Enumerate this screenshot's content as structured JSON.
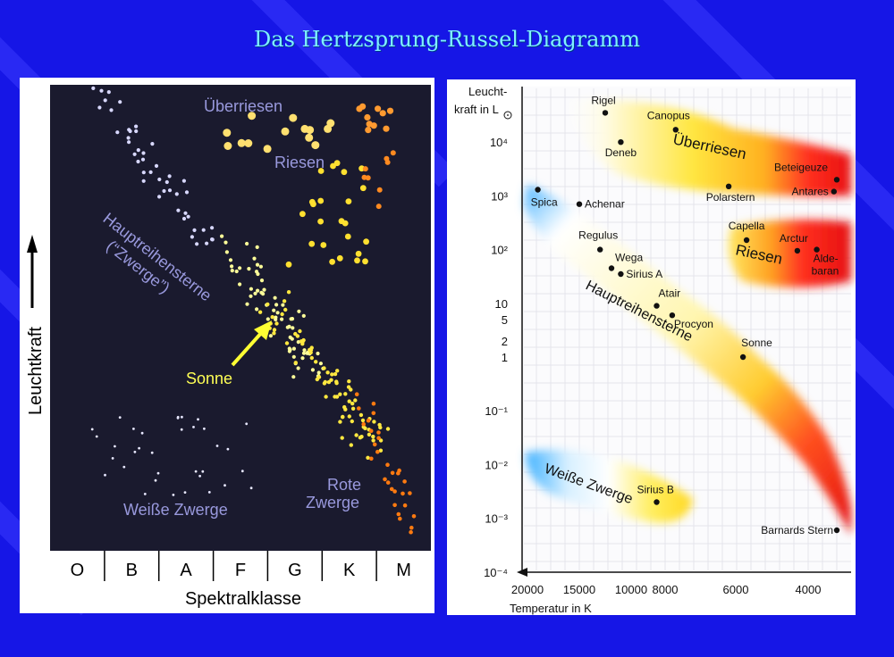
{
  "title": "Das Hertzsprung-Russel-Diagramm",
  "left_diagram": {
    "y_axis_label": "Leuchtkraft",
    "x_axis_label": "Spektralklasse",
    "spectral_classes": [
      "O",
      "B",
      "A",
      "F",
      "G",
      "K",
      "M"
    ],
    "region_labels": {
      "supergiants": "Überriesen",
      "giants": "Riesen",
      "main_sequence_line1": "Hauptreihensterne",
      "main_sequence_line2": "(“Zwerge”)",
      "sun": "Sonne",
      "red_dwarfs_line1": "Rote",
      "red_dwarfs_line2": "Zwerge",
      "white_dwarfs": "Weiße Zwerge"
    }
  },
  "right_diagram": {
    "y_axis_title_line1": "Leucht-",
    "y_axis_title_line2": "kraft in L",
    "x_axis_title": "Temperatur in K",
    "y_ticks": [
      {
        "label": "10⁴",
        "value": 10000
      },
      {
        "label": "10³",
        "value": 1000
      },
      {
        "label": "10²",
        "value": 100
      },
      {
        "label": "10",
        "value": 10
      },
      {
        "label": "5",
        "value": 5
      },
      {
        "label": "2",
        "value": 2
      },
      {
        "label": "1",
        "value": 1
      },
      {
        "label": "10⁻¹",
        "value": 0.1
      },
      {
        "label": "10⁻²",
        "value": 0.01
      },
      {
        "label": "10⁻³",
        "value": 0.001
      },
      {
        "label": "10⁻⁴",
        "value": 0.0001
      }
    ],
    "x_ticks": [
      {
        "label": "20000",
        "value": 20000
      },
      {
        "label": "15000",
        "value": 15000
      },
      {
        "label": "10000",
        "value": 10000
      },
      {
        "label": "8000",
        "value": 8000
      },
      {
        "label": "6000",
        "value": 6000
      },
      {
        "label": "4000",
        "value": 4000
      }
    ],
    "region_labels": {
      "supergiants": "Überriesen",
      "giants": "Riesen",
      "main_sequence": "Hauptreihensterne",
      "white_dwarfs": "Weiße Zwerge"
    },
    "stars": [
      {
        "name": "Rigel",
        "temp": 12500,
        "lum": 35000
      },
      {
        "name": "Canopus",
        "temp": 7700,
        "lum": 17000
      },
      {
        "name": "Deneb",
        "temp": 11000,
        "lum": 10000
      },
      {
        "name": "Beteigeuze",
        "temp": 3000,
        "lum": 2000
      },
      {
        "name": "Antares",
        "temp": 3100,
        "lum": 1200
      },
      {
        "name": "Polarstern",
        "temp": 6200,
        "lum": 1500
      },
      {
        "name": "Spica",
        "temp": 19000,
        "lum": 1300
      },
      {
        "name": "Achenar",
        "temp": 15000,
        "lum": 700
      },
      {
        "name": "Capella",
        "temp": 5700,
        "lum": 150
      },
      {
        "name": "Arctur",
        "temp": 4300,
        "lum": 95
      },
      {
        "name": "Aldebaran",
        "temp": 3700,
        "lum": 100
      },
      {
        "name": "Regulus",
        "temp": 13000,
        "lum": 100
      },
      {
        "name": "Wega",
        "temp": 11900,
        "lum": 45
      },
      {
        "name": "Sirius A",
        "temp": 11000,
        "lum": 35
      },
      {
        "name": "Atair",
        "temp": 8500,
        "lum": 9
      },
      {
        "name": "Procyon",
        "temp": 7800,
        "lum": 6
      },
      {
        "name": "Sonne",
        "temp": 5800,
        "lum": 1
      },
      {
        "name": "Sirius B",
        "temp": 8500,
        "lum": 0.002
      },
      {
        "name": "Barnards Stern",
        "temp": 3000,
        "lum": 0.0006
      }
    ]
  }
}
